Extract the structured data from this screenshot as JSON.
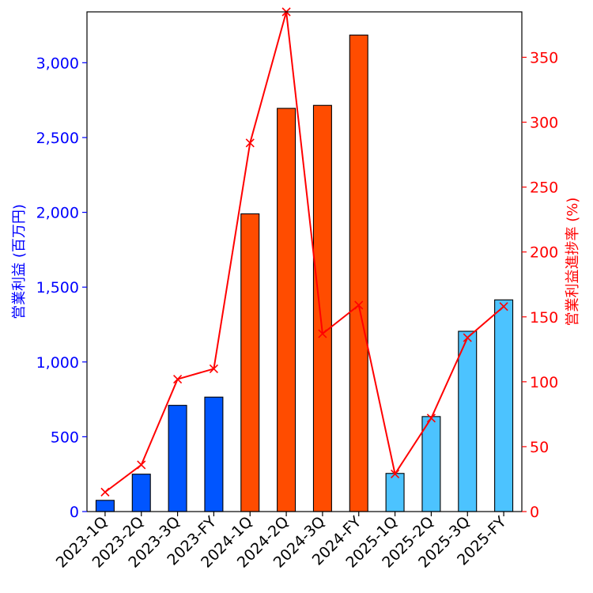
{
  "chart_data": {
    "type": "bar",
    "categories": [
      "2023-1Q",
      "2023-2Q",
      "2023-3Q",
      "2023-FY",
      "2024-1Q",
      "2024-2Q",
      "2024-3Q",
      "2024-FY",
      "2025-1Q",
      "2025-2Q",
      "2025-3Q",
      "2025-FY"
    ],
    "series": [
      {
        "type": "bar",
        "axis": "left",
        "values": [
          75,
          250,
          710,
          765,
          1990,
          2695,
          2715,
          3185,
          255,
          635,
          1205,
          1415
        ],
        "colors": [
          "#0055ff",
          "#0055ff",
          "#0055ff",
          "#0055ff",
          "#ff4c00",
          "#ff4c00",
          "#ff4c00",
          "#ff4c00",
          "#4cc3ff",
          "#4cc3ff",
          "#4cc3ff",
          "#4cc3ff"
        ]
      },
      {
        "type": "line",
        "axis": "right",
        "marker": "x",
        "color": "#ff0000",
        "values": [
          15,
          36,
          102,
          110,
          284,
          385,
          137,
          159,
          29,
          72,
          134,
          158
        ]
      }
    ],
    "left_axis": {
      "label": "営業利益 (百万円)",
      "ylim": [
        0,
        3340
      ],
      "ticks": [
        0,
        500,
        1000,
        1500,
        2000,
        2500,
        3000
      ],
      "tick_labels": [
        "0",
        "500",
        "1,000",
        "1,500",
        "2,000",
        "2,500",
        "3,000"
      ],
      "color": "#0000ff"
    },
    "right_axis": {
      "label": "営業利益進捗率 (%)",
      "ylim": [
        0,
        385
      ],
      "ticks": [
        0,
        50,
        100,
        150,
        200,
        250,
        300,
        350
      ],
      "tick_labels": [
        "0",
        "50",
        "100",
        "150",
        "200",
        "250",
        "300",
        "350"
      ],
      "color": "#ff0000"
    },
    "grid": false,
    "legend": "none"
  }
}
